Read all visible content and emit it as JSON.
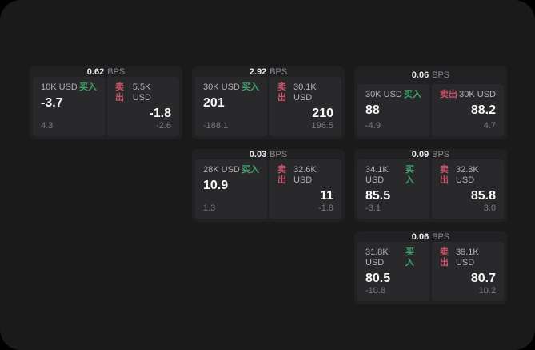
{
  "labels": {
    "bps_unit": "BPS",
    "buy": "买入",
    "sell": "卖出"
  },
  "colors": {
    "window_bg": "#1a1a1b",
    "card_bg": "#212123",
    "tile_bg": "#29292b",
    "buy_accent": "#3fa46b",
    "sell_accent": "#c9536b"
  },
  "cards": [
    {
      "bps": "0.62",
      "buy": {
        "amount": "10K USD",
        "price": "-3.7",
        "change": "4.3"
      },
      "sell": {
        "amount": "5.5K USD",
        "price": "-1.8",
        "change": "-2.6"
      }
    },
    {
      "bps": "2.92",
      "buy": {
        "amount": "30K USD",
        "price": "201",
        "change": "-188.1"
      },
      "sell": {
        "amount": "30.1K USD",
        "price": "210",
        "change": "196.5"
      }
    },
    {
      "bps": "0.06",
      "buy": {
        "amount": "30K USD",
        "price": "88",
        "change": "-4.9"
      },
      "sell": {
        "amount": "30K USD",
        "price": "88.2",
        "change": "4.7"
      }
    },
    {
      "bps": "0.03",
      "buy": {
        "amount": "28K USD",
        "price": "10.9",
        "change": "1.3"
      },
      "sell": {
        "amount": "32.6K USD",
        "price": "11",
        "change": "-1.8"
      }
    },
    {
      "bps": "0.09",
      "buy": {
        "amount": "34.1K USD",
        "price": "85.5",
        "change": "-3.1"
      },
      "sell": {
        "amount": "32.8K USD",
        "price": "85.8",
        "change": "3.0"
      }
    },
    {
      "bps": "0.06",
      "buy": {
        "amount": "31.8K USD",
        "price": "80.5",
        "change": "-10.8"
      },
      "sell": {
        "amount": "39.1K USD",
        "price": "80.7",
        "change": "10.2"
      }
    }
  ]
}
